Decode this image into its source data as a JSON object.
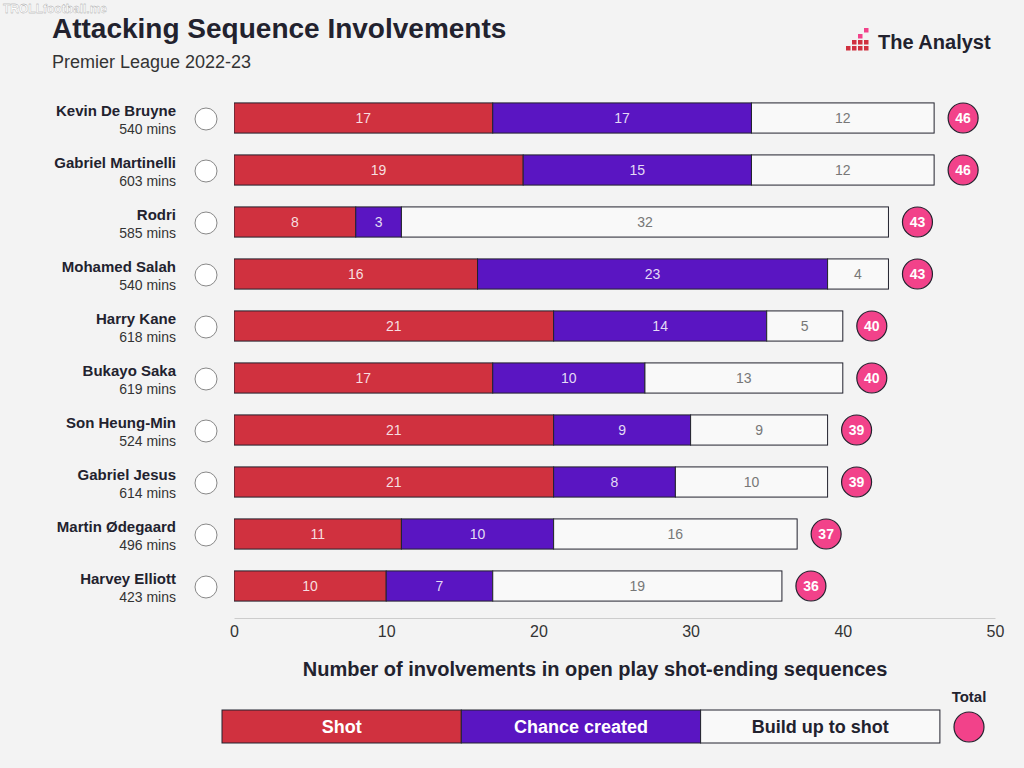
{
  "chart_data": {
    "type": "bar",
    "orientation": "horizontal",
    "stacked": true,
    "data_labels": true,
    "grid": false,
    "legend": "bottom",
    "title": "Attacking Sequence Involvements",
    "subtitle": "Premier League 2022-23",
    "source": "The Analyst",
    "watermark": "TROLLfootball.me",
    "x_label": "Number of involvements in open play shot-ending sequences",
    "categories": [
      "Kevin De Bruyne",
      "Gabriel Martinelli",
      "Rodri",
      "Mohamed Salah",
      "Harry Kane",
      "Bukayo Saka",
      "Son Heung-Min",
      "Gabriel Jesus",
      "Martin Ødegaard",
      "Harvey Elliott"
    ],
    "category_subtitles": [
      "540 mins",
      "603 mins",
      "585 mins",
      "540 mins",
      "618 mins",
      "619 mins",
      "524 mins",
      "614 mins",
      "496 mins",
      "423 mins"
    ],
    "series": [
      {
        "name": "Shot",
        "color": "#d0313f",
        "values": [
          17,
          19,
          8,
          16,
          21,
          17,
          21,
          21,
          11,
          10
        ]
      },
      {
        "name": "Chance created",
        "color": "#5a15c2",
        "values": [
          17,
          15,
          3,
          23,
          14,
          10,
          9,
          8,
          10,
          7
        ]
      },
      {
        "name": "Build up to shot",
        "color": "#f9f9f9",
        "values": [
          12,
          12,
          32,
          4,
          5,
          13,
          9,
          10,
          16,
          19
        ]
      }
    ],
    "totals_label": "Total",
    "totals_color": "#f2428a",
    "totals": [
      46,
      46,
      43,
      43,
      40,
      40,
      39,
      39,
      37,
      36
    ],
    "xlim": [
      0,
      50
    ],
    "xticks": [
      0,
      10,
      20,
      30,
      40,
      50
    ]
  }
}
